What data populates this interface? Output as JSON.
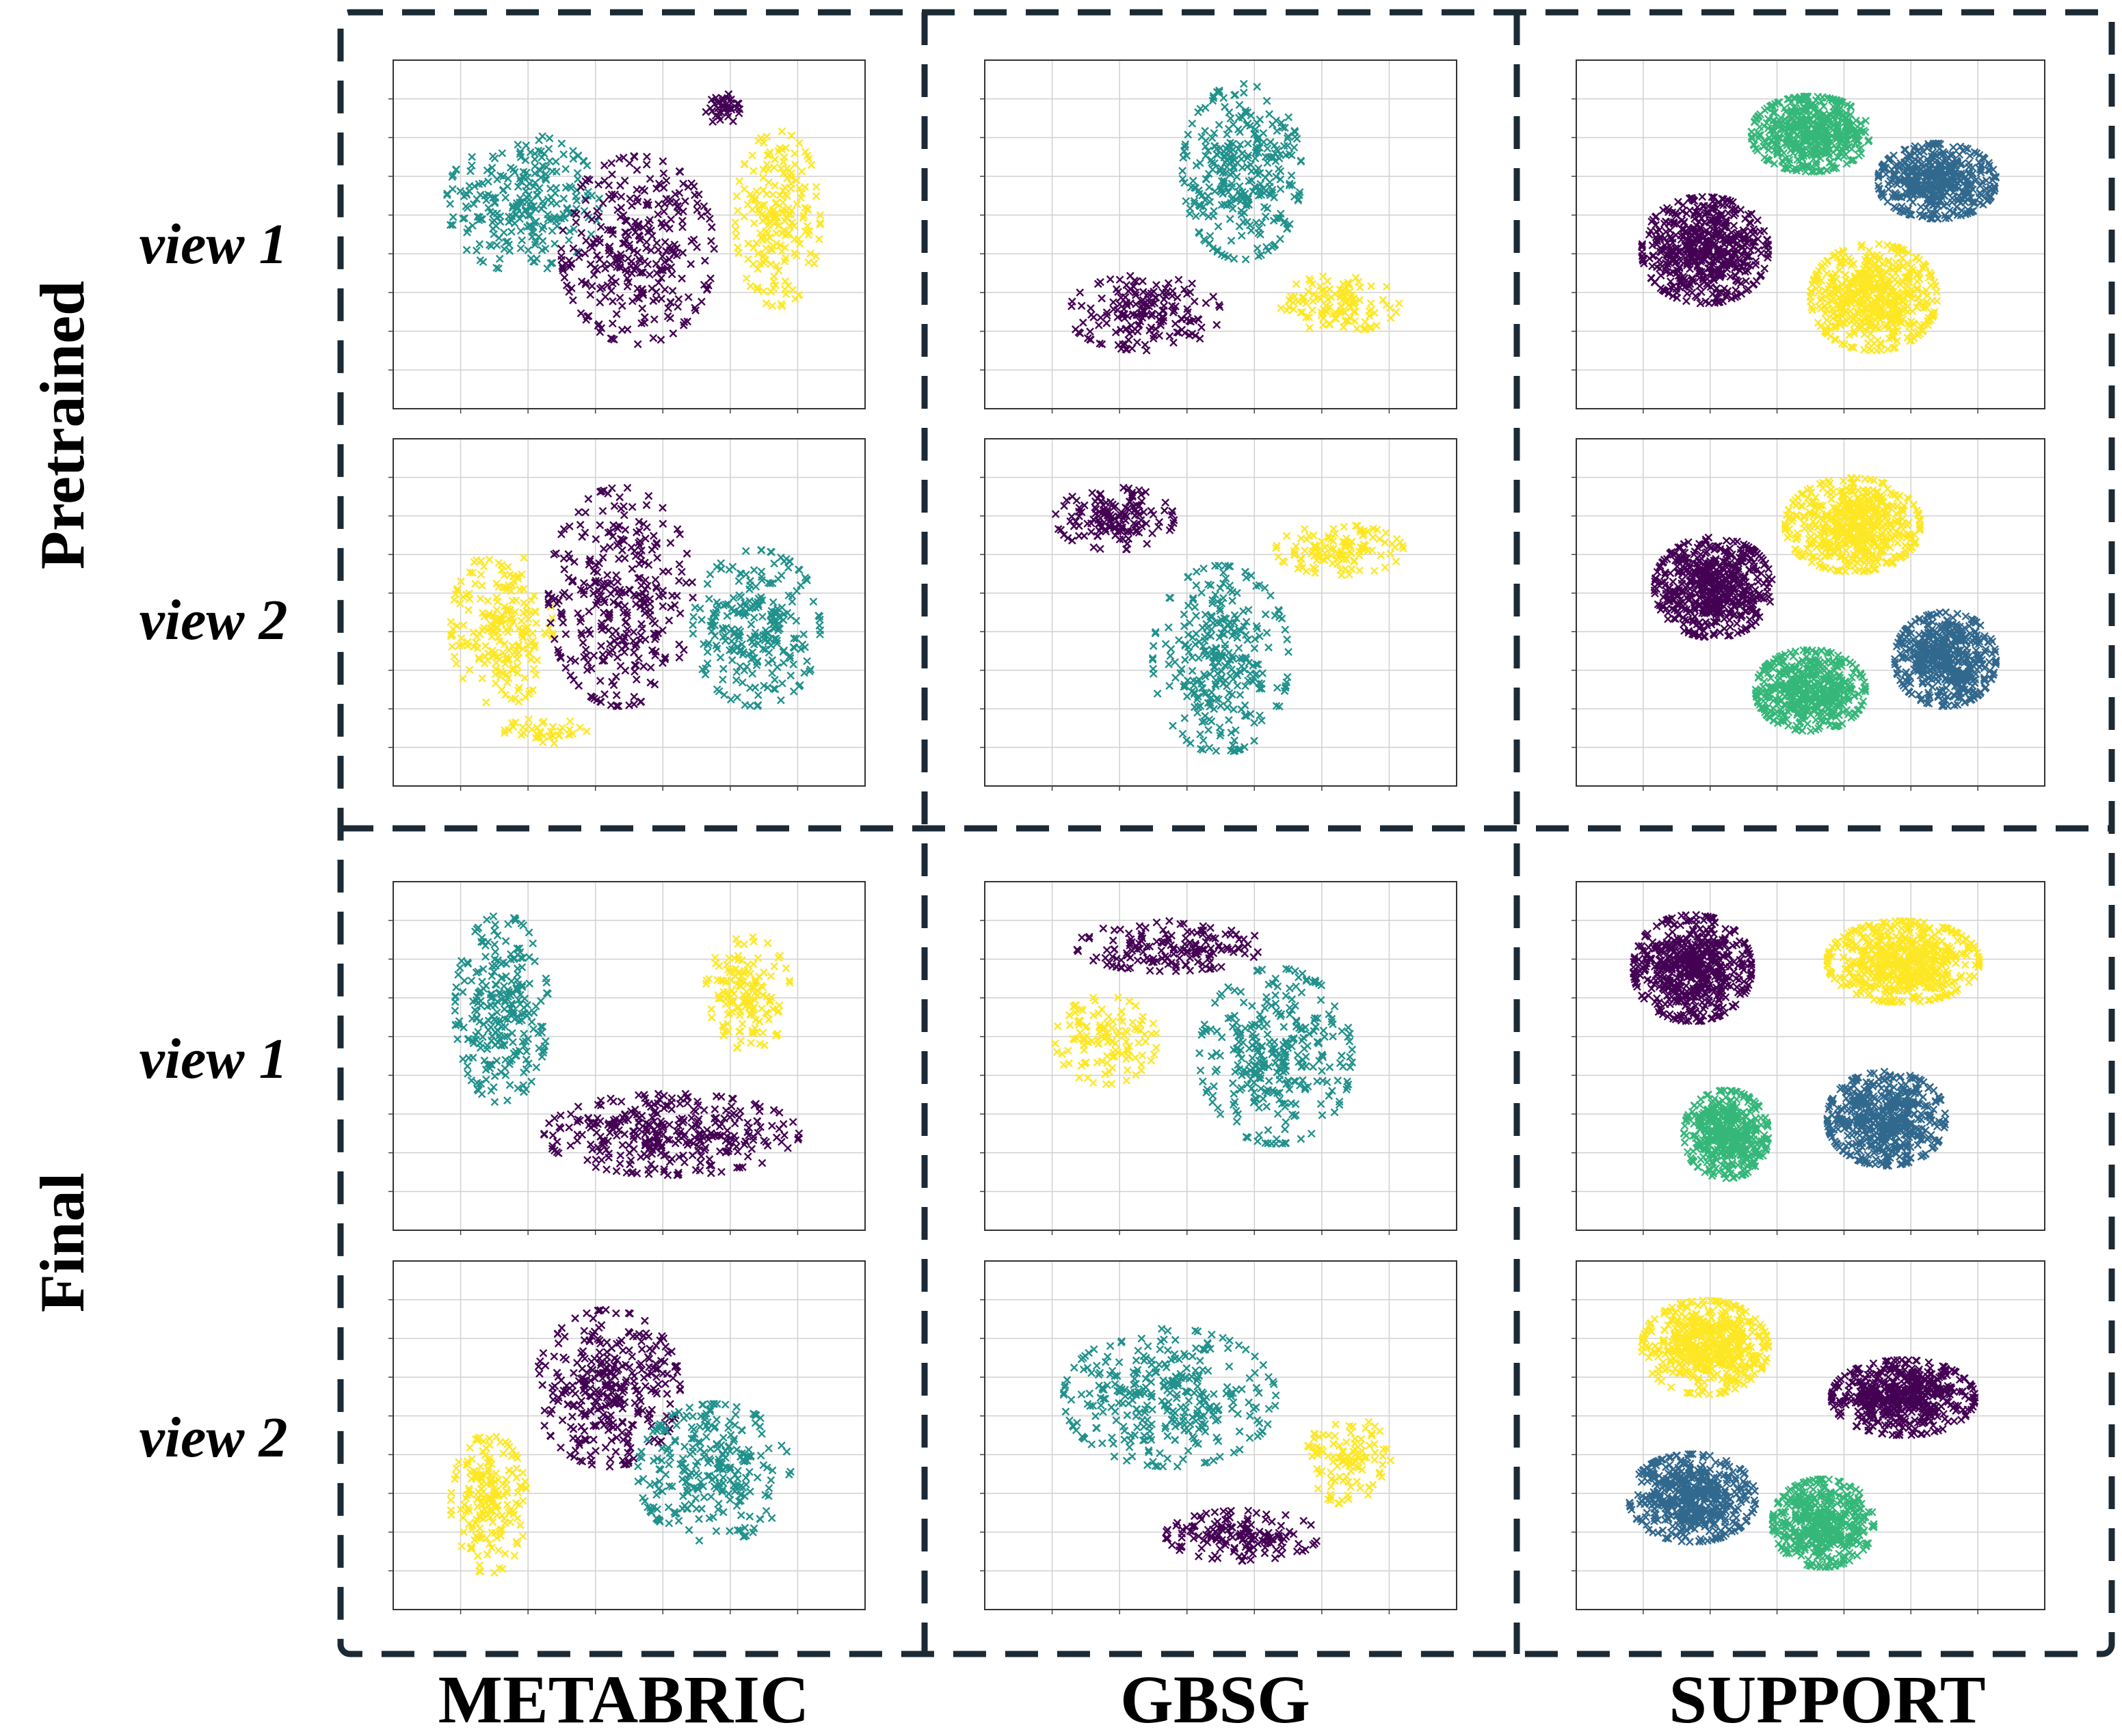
{
  "chart_data": {
    "type": "scatter",
    "description_labels": {
      "row_groups": [
        "Pretrained",
        "Final"
      ],
      "view_labels": [
        "view 1",
        "view 2"
      ],
      "columns": [
        "METABRIC",
        "GBSG",
        "SUPPORT"
      ]
    },
    "colors": {
      "purple": "#440154",
      "teal": "#21918c",
      "yellow": "#fde725",
      "blue": "#31688e",
      "green": "#35b779",
      "frame": "#1b2a35"
    },
    "panels": [
      {
        "stage": "Pretrained",
        "view": "view 1",
        "dataset": "METABRIC",
        "xlim": [
          0,
          100
        ],
        "ylim": [
          0,
          100
        ],
        "clusters": [
          {
            "color": "teal",
            "cx": 25,
            "cy": 60,
            "rx": 18,
            "ry": 22,
            "n": 260
          },
          {
            "color": "purple",
            "cx": 52,
            "cy": 45,
            "rx": 18,
            "ry": 30,
            "n": 320
          },
          {
            "color": "yellow",
            "cx": 85,
            "cy": 55,
            "rx": 10,
            "ry": 28,
            "n": 200
          },
          {
            "color": "purple",
            "cx": 72,
            "cy": 90,
            "rx": 4,
            "ry": 5,
            "n": 40
          }
        ]
      },
      {
        "stage": "Pretrained",
        "view": "view 2",
        "dataset": "METABRIC",
        "xlim": [
          0,
          100
        ],
        "ylim": [
          0,
          100
        ],
        "clusters": [
          {
            "color": "yellow",
            "cx": 20,
            "cy": 45,
            "rx": 12,
            "ry": 25,
            "n": 220
          },
          {
            "color": "purple",
            "cx": 48,
            "cy": 55,
            "rx": 17,
            "ry": 35,
            "n": 320
          },
          {
            "color": "teal",
            "cx": 80,
            "cy": 45,
            "rx": 15,
            "ry": 25,
            "n": 260
          },
          {
            "color": "yellow",
            "cx": 30,
            "cy": 12,
            "rx": 10,
            "ry": 4,
            "n": 40
          }
        ]
      },
      {
        "stage": "Pretrained",
        "view": "view 1",
        "dataset": "GBSG",
        "xlim": [
          0,
          100
        ],
        "ylim": [
          0,
          100
        ],
        "clusters": [
          {
            "color": "teal",
            "cx": 55,
            "cy": 70,
            "rx": 14,
            "ry": 28,
            "n": 320
          },
          {
            "color": "purple",
            "cx": 32,
            "cy": 25,
            "rx": 18,
            "ry": 12,
            "n": 170
          },
          {
            "color": "yellow",
            "cx": 78,
            "cy": 28,
            "rx": 14,
            "ry": 9,
            "n": 120
          }
        ]
      },
      {
        "stage": "Pretrained",
        "view": "view 2",
        "dataset": "GBSG",
        "xlim": [
          0,
          100
        ],
        "ylim": [
          0,
          100
        ],
        "clusters": [
          {
            "color": "purple",
            "cx": 25,
            "cy": 80,
            "rx": 14,
            "ry": 10,
            "n": 150
          },
          {
            "color": "yellow",
            "cx": 78,
            "cy": 70,
            "rx": 15,
            "ry": 8,
            "n": 120
          },
          {
            "color": "teal",
            "cx": 50,
            "cy": 35,
            "rx": 16,
            "ry": 30,
            "n": 300
          }
        ]
      },
      {
        "stage": "Pretrained",
        "view": "view 1",
        "dataset": "SUPPORT",
        "xlim": [
          0,
          100
        ],
        "ylim": [
          0,
          100
        ],
        "clusters": [
          {
            "color": "green",
            "cx": 50,
            "cy": 82,
            "rx": 14,
            "ry": 12,
            "n": 500
          },
          {
            "color": "blue",
            "cx": 80,
            "cy": 67,
            "rx": 14,
            "ry": 12,
            "n": 500
          },
          {
            "color": "purple",
            "cx": 25,
            "cy": 45,
            "rx": 15,
            "ry": 17,
            "n": 550
          },
          {
            "color": "yellow",
            "cx": 65,
            "cy": 30,
            "rx": 15,
            "ry": 17,
            "n": 550
          }
        ]
      },
      {
        "stage": "Pretrained",
        "view": "view 2",
        "dataset": "SUPPORT",
        "xlim": [
          0,
          100
        ],
        "ylim": [
          0,
          100
        ],
        "clusters": [
          {
            "color": "yellow",
            "cx": 60,
            "cy": 78,
            "rx": 16,
            "ry": 15,
            "n": 550
          },
          {
            "color": "purple",
            "cx": 27,
            "cy": 58,
            "rx": 14,
            "ry": 16,
            "n": 550
          },
          {
            "color": "blue",
            "cx": 82,
            "cy": 35,
            "rx": 12,
            "ry": 15,
            "n": 500
          },
          {
            "color": "green",
            "cx": 50,
            "cy": 25,
            "rx": 13,
            "ry": 13,
            "n": 500
          }
        ]
      },
      {
        "stage": "Final",
        "view": "view 1",
        "dataset": "METABRIC",
        "xlim": [
          0,
          100
        ],
        "ylim": [
          0,
          100
        ],
        "clusters": [
          {
            "color": "teal",
            "cx": 20,
            "cy": 65,
            "rx": 11,
            "ry": 30,
            "n": 270
          },
          {
            "color": "yellow",
            "cx": 78,
            "cy": 70,
            "rx": 10,
            "ry": 18,
            "n": 150
          },
          {
            "color": "purple",
            "cx": 60,
            "cy": 25,
            "rx": 30,
            "ry": 13,
            "n": 330
          }
        ]
      },
      {
        "stage": "Final",
        "view": "view 2",
        "dataset": "METABRIC",
        "xlim": [
          0,
          100
        ],
        "ylim": [
          0,
          100
        ],
        "clusters": [
          {
            "color": "purple",
            "cx": 45,
            "cy": 65,
            "rx": 17,
            "ry": 25,
            "n": 330
          },
          {
            "color": "yellow",
            "cx": 17,
            "cy": 28,
            "rx": 9,
            "ry": 22,
            "n": 190
          },
          {
            "color": "teal",
            "cx": 70,
            "cy": 38,
            "rx": 18,
            "ry": 22,
            "n": 270
          }
        ]
      },
      {
        "stage": "Final",
        "view": "view 1",
        "dataset": "GBSG",
        "xlim": [
          0,
          100
        ],
        "ylim": [
          0,
          100
        ],
        "clusters": [
          {
            "color": "purple",
            "cx": 38,
            "cy": 85,
            "rx": 22,
            "ry": 8,
            "n": 160
          },
          {
            "color": "yellow",
            "cx": 23,
            "cy": 55,
            "rx": 12,
            "ry": 14,
            "n": 120
          },
          {
            "color": "teal",
            "cx": 63,
            "cy": 50,
            "rx": 18,
            "ry": 28,
            "n": 320
          }
        ]
      },
      {
        "stage": "Final",
        "view": "view 2",
        "dataset": "GBSG",
        "xlim": [
          0,
          100
        ],
        "ylim": [
          0,
          100
        ],
        "clusters": [
          {
            "color": "teal",
            "cx": 38,
            "cy": 62,
            "rx": 25,
            "ry": 22,
            "n": 330
          },
          {
            "color": "yellow",
            "cx": 80,
            "cy": 42,
            "rx": 10,
            "ry": 14,
            "n": 110
          },
          {
            "color": "purple",
            "cx": 55,
            "cy": 18,
            "rx": 18,
            "ry": 8,
            "n": 150
          }
        ]
      },
      {
        "stage": "Final",
        "view": "view 1",
        "dataset": "SUPPORT",
        "xlim": [
          0,
          100
        ],
        "ylim": [
          0,
          100
        ],
        "clusters": [
          {
            "color": "purple",
            "cx": 22,
            "cy": 78,
            "rx": 14,
            "ry": 17,
            "n": 550
          },
          {
            "color": "yellow",
            "cx": 72,
            "cy": 80,
            "rx": 18,
            "ry": 13,
            "n": 600
          },
          {
            "color": "green",
            "cx": 30,
            "cy": 25,
            "rx": 10,
            "ry": 14,
            "n": 450
          },
          {
            "color": "blue",
            "cx": 68,
            "cy": 30,
            "rx": 14,
            "ry": 15,
            "n": 550
          }
        ]
      },
      {
        "stage": "Final",
        "view": "view 2",
        "dataset": "SUPPORT",
        "xlim": [
          0,
          100
        ],
        "ylim": [
          0,
          100
        ],
        "clusters": [
          {
            "color": "yellow",
            "cx": 25,
            "cy": 78,
            "rx": 15,
            "ry": 15,
            "n": 550
          },
          {
            "color": "purple",
            "cx": 72,
            "cy": 62,
            "rx": 17,
            "ry": 12,
            "n": 520
          },
          {
            "color": "blue",
            "cx": 22,
            "cy": 30,
            "rx": 15,
            "ry": 14,
            "n": 520
          },
          {
            "color": "green",
            "cx": 53,
            "cy": 22,
            "rx": 12,
            "ry": 14,
            "n": 480
          }
        ]
      }
    ]
  }
}
